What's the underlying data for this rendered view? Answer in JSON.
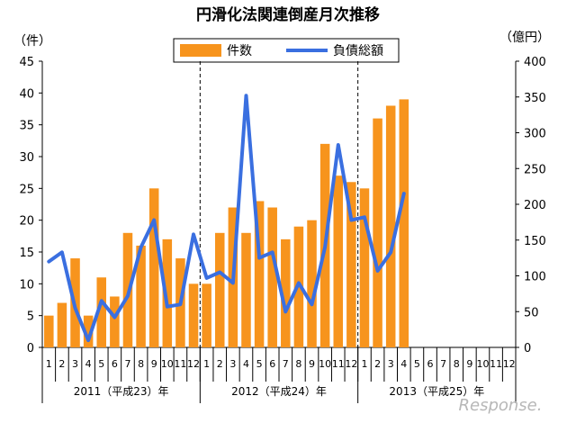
{
  "chart_data": {
    "type": "bar+line",
    "title": "円滑化法関連倒産月次推移",
    "left_unit": "（件）",
    "right_unit": "（億円）",
    "categories": [
      "1",
      "2",
      "3",
      "4",
      "5",
      "6",
      "7",
      "8",
      "9",
      "10",
      "11",
      "12",
      "1",
      "2",
      "3",
      "4",
      "5",
      "6",
      "7",
      "8",
      "9",
      "10",
      "11",
      "12",
      "1",
      "2",
      "3",
      "4",
      "5",
      "6",
      "7",
      "8",
      "9",
      "10",
      "11",
      "12"
    ],
    "year_labels": [
      "2011（平成23）年",
      "2012（平成24）年",
      "2013（平成25）年"
    ],
    "series": [
      {
        "name": "件数",
        "axis": "left",
        "type": "bar",
        "color": "#f7941d",
        "values": [
          5,
          7,
          14,
          5,
          11,
          8,
          18,
          16,
          25,
          17,
          14,
          10,
          10,
          18,
          22,
          18,
          23,
          22,
          17,
          19,
          20,
          32,
          27,
          26,
          25,
          36,
          38,
          39,
          null,
          null,
          null,
          null,
          null,
          null,
          null,
          null
        ]
      },
      {
        "name": "負債総額",
        "axis": "right",
        "type": "line",
        "color": "#3a6fe0",
        "values": [
          120,
          133,
          55,
          10,
          65,
          42,
          72,
          140,
          178,
          57,
          60,
          158,
          97,
          105,
          90,
          352,
          125,
          133,
          50,
          90,
          60,
          140,
          283,
          178,
          182,
          107,
          133,
          215,
          null,
          null,
          null,
          null,
          null,
          null,
          null,
          null
        ]
      }
    ],
    "ylim_left": [
      0,
      45
    ],
    "yticks_left": [
      0,
      5,
      10,
      15,
      20,
      25,
      30,
      35,
      40,
      45
    ],
    "ylim_right": [
      0,
      400
    ],
    "yticks_right": [
      0,
      50,
      100,
      150,
      200,
      250,
      300,
      350,
      400
    ],
    "grid": false,
    "legend_position": "top"
  },
  "watermark": "Response."
}
